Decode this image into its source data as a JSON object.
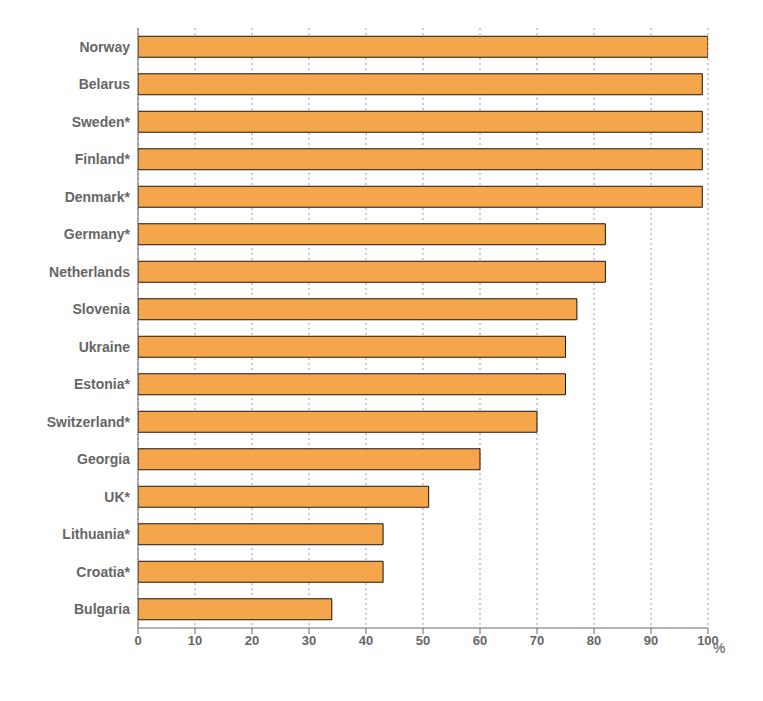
{
  "chart_data": {
    "type": "bar",
    "orientation": "horizontal",
    "categories": [
      "Norway",
      "Belarus",
      "Sweden*",
      "Finland*",
      "Denmark*",
      "Germany*",
      "Netherlands",
      "Slovenia",
      "Ukraine",
      "Estonia*",
      "Switzerland*",
      "Georgia",
      "UK*",
      "Lithuania*",
      "Croatia*",
      "Bulgaria"
    ],
    "values": [
      100,
      99,
      99,
      99,
      99,
      82,
      82,
      77,
      75,
      75,
      70,
      60,
      51,
      43,
      43,
      34
    ],
    "color": "#F5A54A",
    "xlabel": "%",
    "xlim": [
      0,
      100
    ],
    "xticks": [
      0,
      10,
      20,
      30,
      40,
      50,
      60,
      70,
      80,
      90,
      100
    ],
    "grid": true
  }
}
